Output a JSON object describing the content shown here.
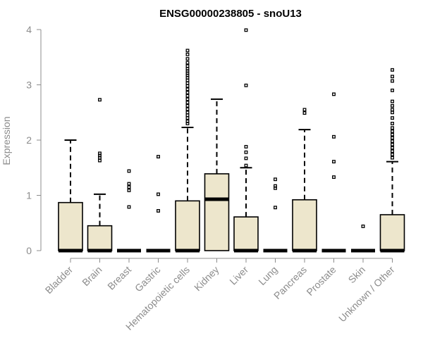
{
  "chart_data": {
    "type": "boxplot",
    "title": "ENSG00000238805 - snoU13",
    "ylabel": "Expression",
    "xlabel": "",
    "ylim": [
      0,
      4
    ],
    "yticks": [
      0,
      1,
      2,
      3,
      4
    ],
    "box_fill": "#ede6cc",
    "categories": [
      "Bladder",
      "Brain",
      "Breast",
      "Gastric",
      "Hematopoietic cells",
      "Kidney",
      "Liver",
      "Lung",
      "Pancreas",
      "Prostate",
      "Skin",
      "Unknown / Other"
    ],
    "series": [
      {
        "category": "Bladder",
        "q1": 0,
        "median": 0,
        "q3": 0.87,
        "whisker_low": 0,
        "whisker_high": 2.0,
        "outliers": []
      },
      {
        "category": "Brain",
        "q1": 0,
        "median": 0,
        "q3": 0.45,
        "whisker_low": 0,
        "whisker_high": 1.02,
        "outliers": [
          1.63,
          1.68,
          1.72,
          1.76,
          2.73
        ]
      },
      {
        "category": "Breast",
        "q1": 0,
        "median": 0,
        "q3": 0,
        "whisker_low": 0,
        "whisker_high": 0,
        "outliers": [
          0.79,
          1.09,
          1.15,
          1.21,
          1.44
        ]
      },
      {
        "category": "Gastric",
        "q1": 0,
        "median": 0,
        "q3": 0,
        "whisker_low": 0,
        "whisker_high": 0,
        "outliers": [
          0.72,
          1.02,
          1.7
        ]
      },
      {
        "category": "Hematopoietic cells",
        "q1": 0,
        "median": 0,
        "q3": 0.9,
        "whisker_low": 0,
        "whisker_high": 2.23,
        "outliers": [
          2.3,
          2.34,
          2.4,
          2.45,
          2.5,
          2.56,
          2.62,
          2.68,
          2.74,
          2.8,
          2.86,
          2.92,
          2.98,
          3.03,
          3.08,
          3.13,
          3.17,
          3.21,
          3.25,
          3.29,
          3.34,
          3.4,
          3.47,
          3.55,
          3.62
        ]
      },
      {
        "category": "Kidney",
        "q1": 0,
        "median": 0.93,
        "q3": 1.39,
        "whisker_low": 0,
        "whisker_high": 2.74,
        "outliers": []
      },
      {
        "category": "Liver",
        "q1": 0,
        "median": 0,
        "q3": 0.61,
        "whisker_low": 0,
        "whisker_high": 1.5,
        "outliers": [
          1.54,
          1.67,
          1.78,
          1.88,
          2.99,
          3.99
        ]
      },
      {
        "category": "Lung",
        "q1": 0,
        "median": 0,
        "q3": 0,
        "whisker_low": 0,
        "whisker_high": 0,
        "outliers": [
          0.78,
          1.13,
          1.17,
          1.29
        ]
      },
      {
        "category": "Pancreas",
        "q1": 0,
        "median": 0,
        "q3": 0.92,
        "whisker_low": 0,
        "whisker_high": 2.19,
        "outliers": [
          2.49,
          2.55
        ]
      },
      {
        "category": "Prostate",
        "q1": 0,
        "median": 0,
        "q3": 0,
        "whisker_low": 0,
        "whisker_high": 0,
        "outliers": [
          1.33,
          1.61,
          2.06,
          2.83
        ]
      },
      {
        "category": "Skin",
        "q1": 0,
        "median": 0,
        "q3": 0,
        "whisker_low": 0,
        "whisker_high": 0,
        "outliers": [
          0.44
        ]
      },
      {
        "category": "Unknown / Other",
        "q1": 0,
        "median": 0,
        "q3": 0.65,
        "whisker_low": 0,
        "whisker_high": 1.61,
        "outliers": [
          1.68,
          1.74,
          1.8,
          1.86,
          1.92,
          1.98,
          2.04,
          2.1,
          2.16,
          2.22,
          2.3,
          2.4,
          2.5,
          2.55,
          2.62,
          2.7,
          2.9,
          3.07,
          3.15,
          3.27
        ]
      }
    ]
  }
}
